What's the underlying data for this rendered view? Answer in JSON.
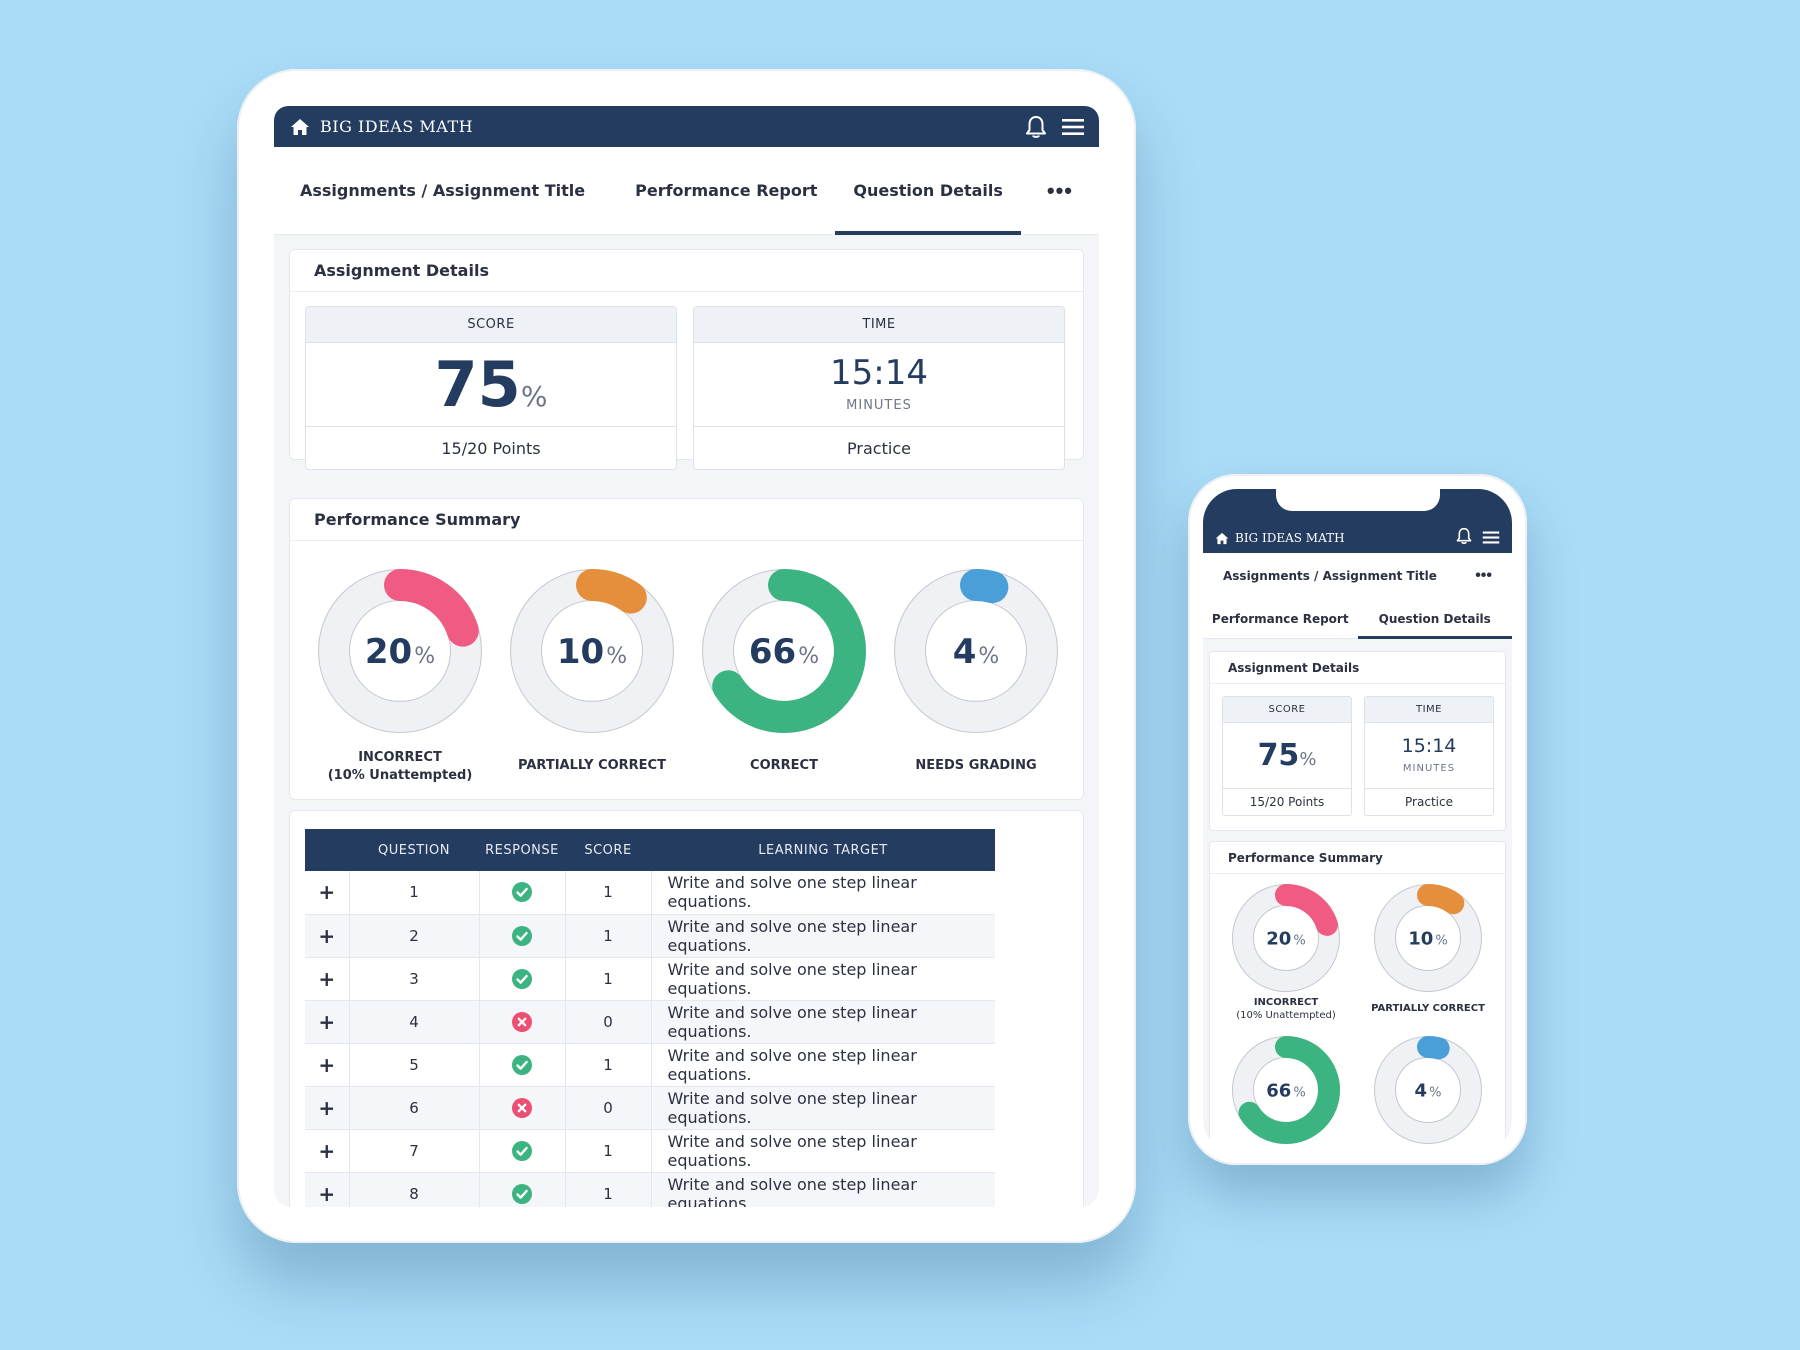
{
  "app": {
    "logo": "BIG IDEAS MATH"
  },
  "nav": {
    "breadcrumb": "Assignments / Assignment Title",
    "tabs": [
      {
        "label": "Performance Report"
      },
      {
        "label": "Question Details"
      }
    ],
    "active_tab": "Question Details",
    "more": "•••"
  },
  "details": {
    "title": "Assignment Details",
    "score": {
      "header": "SCORE",
      "value": "75",
      "unit": "%",
      "points": "15/20 Points"
    },
    "time": {
      "header": "TIME",
      "value": "15:14",
      "unit": "MINUTES",
      "mode": "Practice"
    }
  },
  "summary": {
    "title": "Performance Summary",
    "items": [
      {
        "value": "20",
        "unit": "%",
        "label": "INCORRECT",
        "sub": "(10% Unattempted)",
        "fraction": 0.2,
        "color": "#ef5b82"
      },
      {
        "value": "10",
        "unit": "%",
        "label": "PARTIALLY CORRECT",
        "sub": "",
        "fraction": 0.1,
        "color": "#e58f3c"
      },
      {
        "value": "66",
        "unit": "%",
        "label": "CORRECT",
        "sub": "",
        "fraction": 0.66,
        "color": "#3cb481"
      },
      {
        "value": "4",
        "unit": "%",
        "label": "NEEDS GRADING",
        "sub": "",
        "fraction": 0.04,
        "color": "#4a9fd8"
      }
    ]
  },
  "table": {
    "headers": [
      "QUESTION",
      "RESPONSE",
      "SCORE",
      "LEARNING TARGET"
    ],
    "rows": [
      {
        "expand": "+",
        "question": "1",
        "response": "correct",
        "score": "1",
        "target": "Write and solve one step linear equations."
      },
      {
        "expand": "+",
        "question": "2",
        "response": "correct",
        "score": "1",
        "target": "Write and solve one step linear equations."
      },
      {
        "expand": "+",
        "question": "3",
        "response": "correct",
        "score": "1",
        "target": "Write and solve one step linear equations."
      },
      {
        "expand": "+",
        "question": "4",
        "response": "incorrect",
        "score": "0",
        "target": "Write and solve one step linear equations."
      },
      {
        "expand": "+",
        "question": "5",
        "response": "correct",
        "score": "1",
        "target": "Write and solve one step linear equations."
      },
      {
        "expand": "+",
        "question": "6",
        "response": "incorrect",
        "score": "0",
        "target": "Write and solve one step linear equations."
      },
      {
        "expand": "+",
        "question": "7",
        "response": "correct",
        "score": "1",
        "target": "Write and solve one step linear equations."
      },
      {
        "expand": "+",
        "question": "8",
        "response": "correct",
        "score": "1",
        "target": "Write and solve one step linear equations."
      }
    ]
  },
  "colors": {
    "navy": "#233c60",
    "track": "#f0f1f4",
    "correct": "#3cb481",
    "incorrect": "#ec4f72"
  },
  "icons": {
    "home": "home-icon",
    "bell": "bell-icon",
    "menu": "menu-icon",
    "correct": "check-circle-icon",
    "incorrect": "x-circle-icon"
  }
}
